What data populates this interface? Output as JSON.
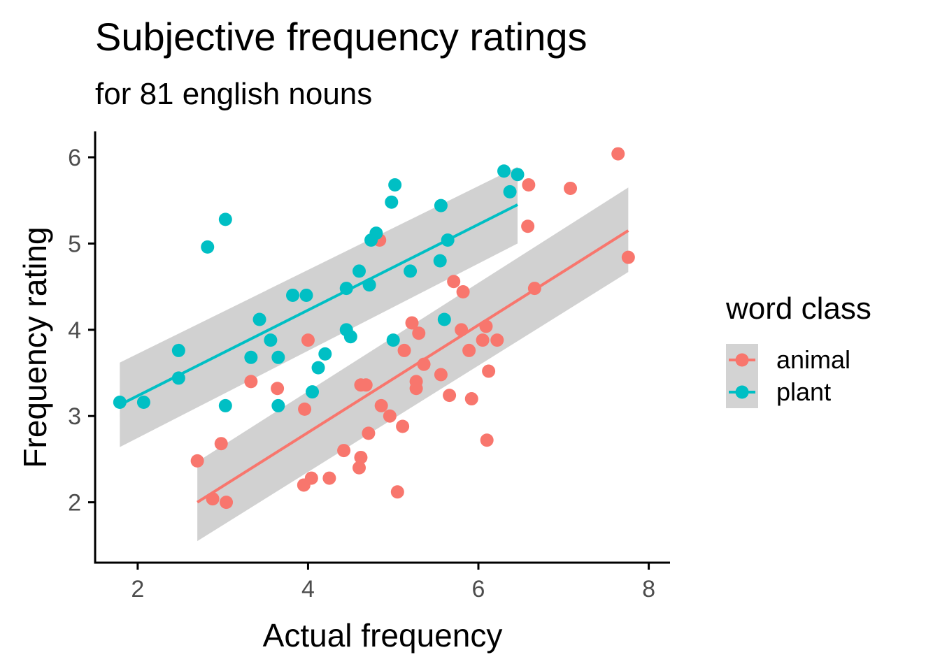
{
  "chart_data": {
    "type": "scatter",
    "title": "Subjective frequency ratings",
    "subtitle": "for 81 english nouns",
    "xlabel": "Actual frequency",
    "ylabel": "Frequency rating",
    "xlim": [
      1.5,
      8.25
    ],
    "ylim": [
      1.3,
      6.3
    ],
    "xticks": [
      2,
      4,
      6,
      8
    ],
    "yticks": [
      2,
      3,
      4,
      5,
      6
    ],
    "grid": false,
    "legend": {
      "title": "word class",
      "position": "right"
    },
    "series": [
      {
        "name": "animal",
        "color": "#F8766D",
        "points": [
          [
            2.7,
            2.48
          ],
          [
            2.88,
            2.04
          ],
          [
            3.04,
            2.0
          ],
          [
            2.98,
            2.68
          ],
          [
            3.33,
            3.4
          ],
          [
            3.64,
            3.32
          ],
          [
            3.95,
            2.2
          ],
          [
            4.04,
            2.28
          ],
          [
            3.96,
            3.08
          ],
          [
            4.0,
            3.88
          ],
          [
            4.25,
            2.28
          ],
          [
            4.42,
            2.6
          ],
          [
            4.6,
            2.4
          ],
          [
            4.62,
            2.52
          ],
          [
            4.62,
            3.36
          ],
          [
            4.68,
            3.36
          ],
          [
            4.71,
            2.8
          ],
          [
            4.84,
            5.04
          ],
          [
            4.86,
            3.12
          ],
          [
            4.96,
            3.0
          ],
          [
            5.05,
            2.12
          ],
          [
            5.11,
            2.88
          ],
          [
            5.13,
            3.76
          ],
          [
            5.22,
            4.08
          ],
          [
            5.27,
            3.32
          ],
          [
            5.27,
            3.4
          ],
          [
            5.3,
            3.96
          ],
          [
            5.36,
            3.6
          ],
          [
            5.56,
            3.48
          ],
          [
            5.66,
            3.24
          ],
          [
            5.71,
            4.56
          ],
          [
            5.8,
            4.0
          ],
          [
            5.82,
            4.44
          ],
          [
            5.89,
            3.76
          ],
          [
            5.92,
            3.2
          ],
          [
            6.05,
            3.88
          ],
          [
            6.09,
            4.04
          ],
          [
            6.1,
            2.72
          ],
          [
            6.12,
            3.52
          ],
          [
            6.22,
            3.88
          ],
          [
            6.58,
            5.2
          ],
          [
            6.59,
            5.68
          ],
          [
            6.66,
            4.48
          ],
          [
            7.08,
            5.64
          ],
          [
            7.64,
            6.04
          ],
          [
            7.76,
            4.84
          ]
        ],
        "fit": {
          "x": [
            2.7,
            7.76
          ],
          "y": [
            2.0,
            5.15
          ],
          "ci_lower": [
            1.55,
            4.67
          ],
          "ci_upper": [
            2.47,
            5.65
          ]
        }
      },
      {
        "name": "plant",
        "color": "#00BFC4",
        "points": [
          [
            1.79,
            3.16
          ],
          [
            2.07,
            3.16
          ],
          [
            2.48,
            3.44
          ],
          [
            2.48,
            3.76
          ],
          [
            2.82,
            4.96
          ],
          [
            3.03,
            5.28
          ],
          [
            3.03,
            3.12
          ],
          [
            3.33,
            3.68
          ],
          [
            3.43,
            4.12
          ],
          [
            3.56,
            3.88
          ],
          [
            3.65,
            3.68
          ],
          [
            3.65,
            3.12
          ],
          [
            3.82,
            4.4
          ],
          [
            3.98,
            4.4
          ],
          [
            4.05,
            3.28
          ],
          [
            4.12,
            3.56
          ],
          [
            4.2,
            3.72
          ],
          [
            4.45,
            4.0
          ],
          [
            4.45,
            4.48
          ],
          [
            4.5,
            3.92
          ],
          [
            4.6,
            4.68
          ],
          [
            4.72,
            4.52
          ],
          [
            4.74,
            5.04
          ],
          [
            4.8,
            5.12
          ],
          [
            4.98,
            5.48
          ],
          [
            5.0,
            3.88
          ],
          [
            5.02,
            5.68
          ],
          [
            5.2,
            4.68
          ],
          [
            5.55,
            4.8
          ],
          [
            5.56,
            5.44
          ],
          [
            5.6,
            4.12
          ],
          [
            5.64,
            5.04
          ],
          [
            6.3,
            5.84
          ],
          [
            6.37,
            5.6
          ],
          [
            6.46,
            5.8
          ]
        ],
        "fit": {
          "x": [
            1.79,
            6.46
          ],
          "y": [
            3.13,
            5.45
          ],
          "ci_lower": [
            2.64,
            5.0
          ],
          "ci_upper": [
            3.62,
            5.89
          ]
        }
      }
    ]
  }
}
